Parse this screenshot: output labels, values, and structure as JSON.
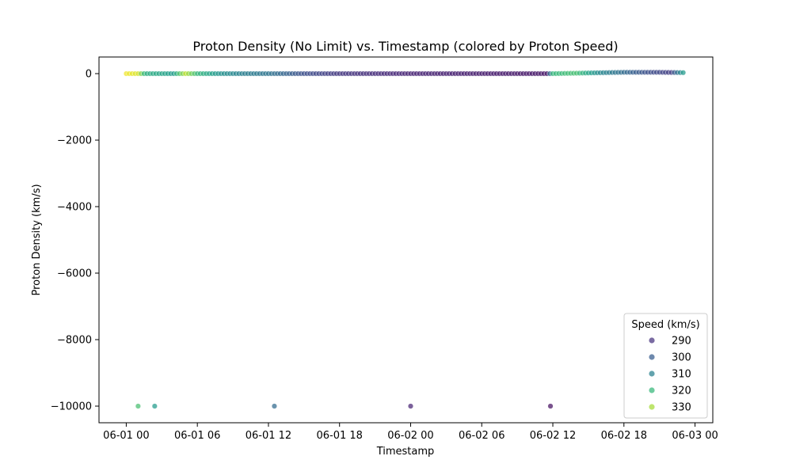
{
  "chart_data": {
    "type": "scatter",
    "title": "Proton Density (No Limit) vs. Timestamp (colored by Proton Speed)",
    "xlabel": "Timestamp",
    "ylabel": "Proton Density (km/s)",
    "x_ticks": [
      "06-01 00",
      "06-01 06",
      "06-01 12",
      "06-01 18",
      "06-02 00",
      "06-02 06",
      "06-02 12",
      "06-02 18",
      "06-03 00"
    ],
    "y_ticks": [
      "0",
      "−2000",
      "−4000",
      "−6000",
      "−8000",
      "−10000"
    ],
    "x_range_hours": [
      -2.3,
      49.5
    ],
    "ylim": [
      -10500,
      500
    ],
    "grid": false,
    "colormap": "viridis",
    "hue_range": [
      285,
      335
    ],
    "legend": {
      "title": "Speed (km/s)",
      "placement": "lower-right",
      "entries": [
        {
          "label": "290",
          "speed": 290,
          "color": "#46327e"
        },
        {
          "label": "300",
          "speed": 300,
          "color": "#365c8d"
        },
        {
          "label": "310",
          "speed": 310,
          "color": "#277f8e"
        },
        {
          "label": "320",
          "speed": 320,
          "color": "#35b779"
        },
        {
          "label": "330",
          "speed": 330,
          "color": "#a5db36"
        }
      ]
    },
    "main_series": {
      "start_hour": 0.0,
      "end_hour": 47.0,
      "step_hour": 0.25,
      "speed_profile": [
        [
          0.0,
          334
        ],
        [
          1.0,
          332
        ],
        [
          1.6,
          316
        ],
        [
          3.0,
          314
        ],
        [
          4.0,
          312
        ],
        [
          5.0,
          330
        ],
        [
          6.0,
          318
        ],
        [
          8.0,
          310
        ],
        [
          10.0,
          306
        ],
        [
          12.0,
          304
        ],
        [
          15.0,
          297
        ],
        [
          18.0,
          293
        ],
        [
          24.0,
          290
        ],
        [
          30.0,
          289
        ],
        [
          35.5,
          288
        ],
        [
          36.0,
          318
        ],
        [
          38.0,
          320
        ],
        [
          40.0,
          308
        ],
        [
          42.0,
          302
        ],
        [
          44.0,
          297
        ],
        [
          46.0,
          294
        ],
        [
          47.0,
          312
        ]
      ],
      "density_profile": [
        [
          0.0,
          0
        ],
        [
          12.0,
          0
        ],
        [
          24.0,
          0
        ],
        [
          36.0,
          0
        ],
        [
          39.0,
          20
        ],
        [
          42.0,
          40
        ],
        [
          45.0,
          40
        ],
        [
          47.0,
          30
        ]
      ]
    },
    "outliers": [
      {
        "x_hour": 1.0,
        "y": -10000,
        "speed": 320
      },
      {
        "x_hour": 2.4,
        "y": -10000,
        "speed": 312
      },
      {
        "x_hour": 12.5,
        "y": -10000,
        "speed": 302
      },
      {
        "x_hour": 24.0,
        "y": -10000,
        "speed": 290
      },
      {
        "x_hour": 35.8,
        "y": -10000,
        "speed": 287
      }
    ]
  }
}
